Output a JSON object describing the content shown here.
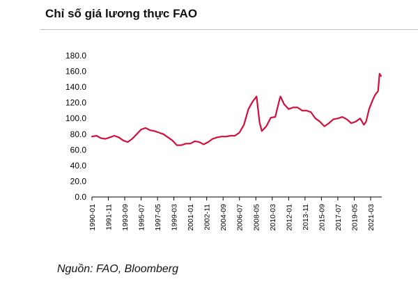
{
  "header": {
    "title": "Chỉ số giá lương thực FAO"
  },
  "footer": {
    "source": "Nguồn: FAO, Bloomberg"
  },
  "colors": {
    "series": "#d0103a",
    "axis": "#000000"
  },
  "chart_data": {
    "type": "line",
    "title": "Chỉ số giá lương thực FAO",
    "xlabel": "",
    "ylabel": "",
    "ylim": [
      0,
      180
    ],
    "y_ticks": [
      "0.0",
      "20.0",
      "40.0",
      "60.0",
      "80.0",
      "100.0",
      "120.0",
      "140.0",
      "160.0",
      "180.0"
    ],
    "x_ticks": [
      "1990-01",
      "1991-11",
      "1993-09",
      "1995-07",
      "1997-05",
      "1999-03",
      "2001-01",
      "2002-11",
      "2004-09",
      "2006-07",
      "2008-05",
      "2010-03",
      "2012-01",
      "2013-11",
      "2015-09",
      "2017-07",
      "2019-05",
      "2021-03"
    ],
    "grid": false,
    "legend": "none",
    "series": [
      {
        "x": [
          "1990-01",
          "1990-07",
          "1991-01",
          "1991-07",
          "1992-01",
          "1992-07",
          "1993-01",
          "1993-07",
          "1994-01",
          "1994-07",
          "1995-01",
          "1995-07",
          "1996-01",
          "1996-07",
          "1997-01",
          "1997-07",
          "1998-01",
          "1998-07",
          "1999-01",
          "1999-07",
          "2000-01",
          "2000-07",
          "2001-01",
          "2001-07",
          "2002-01",
          "2002-07",
          "2003-01",
          "2003-07",
          "2004-01",
          "2004-07",
          "2005-01",
          "2005-07",
          "2006-01",
          "2006-07",
          "2007-01",
          "2007-07",
          "2008-01",
          "2008-06",
          "2008-10",
          "2009-01",
          "2009-07",
          "2010-01",
          "2010-07",
          "2011-01",
          "2011-02",
          "2011-07",
          "2012-01",
          "2012-07",
          "2013-01",
          "2013-07",
          "2014-01",
          "2014-07",
          "2015-01",
          "2015-07",
          "2016-01",
          "2016-07",
          "2017-01",
          "2017-07",
          "2018-01",
          "2018-07",
          "2019-01",
          "2019-07",
          "2020-01",
          "2020-06",
          "2020-09",
          "2021-01",
          "2021-06",
          "2021-09",
          "2022-01",
          "2022-03",
          "2022-05"
        ],
        "values": [
          77,
          78,
          75,
          74,
          76,
          78,
          76,
          72,
          70,
          74,
          80,
          86,
          88,
          85,
          84,
          82,
          80,
          76,
          72,
          66,
          66,
          68,
          68,
          71,
          70,
          67,
          70,
          74,
          76,
          77,
          77,
          78,
          78,
          82,
          92,
          112,
          122,
          128,
          95,
          84,
          90,
          101,
          102,
          125,
          128,
          118,
          112,
          114,
          114,
          110,
          110,
          108,
          100,
          96,
          90,
          94,
          99,
          100,
          102,
          99,
          94,
          96,
          100,
          92,
          96,
          112,
          124,
          130,
          135,
          157,
          154
        ]
      }
    ]
  }
}
